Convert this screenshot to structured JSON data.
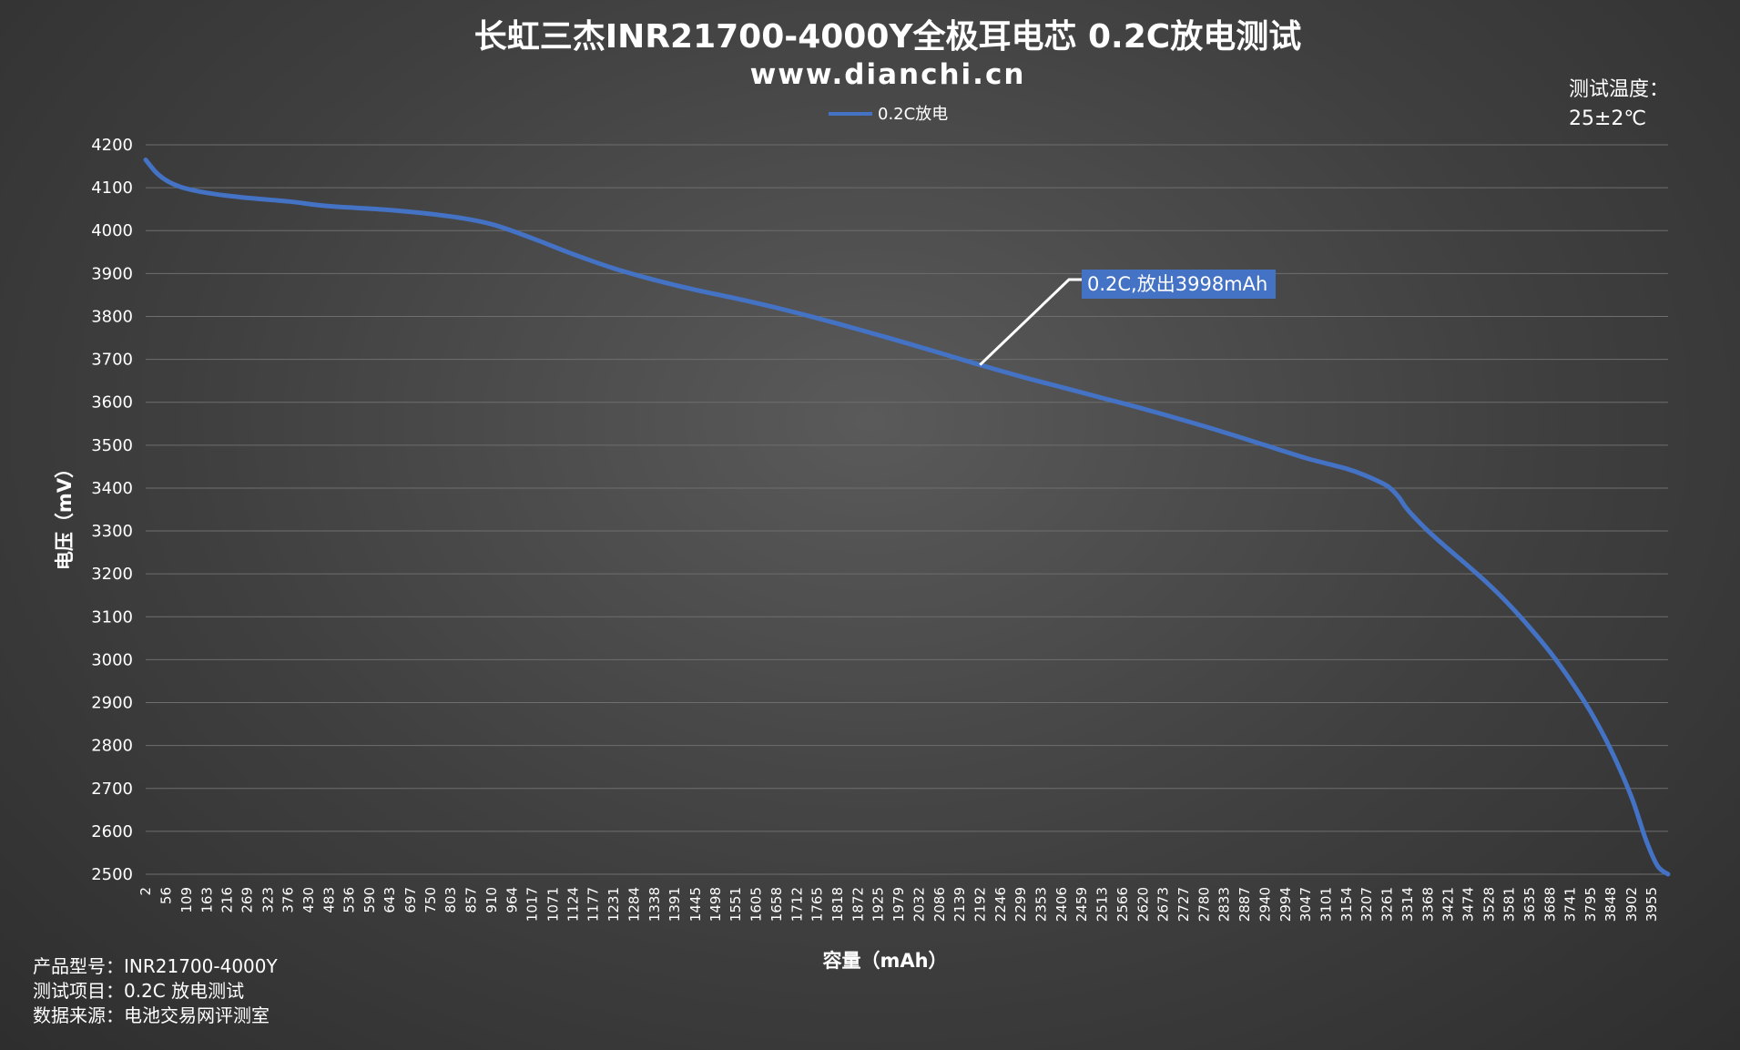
{
  "title": "长虹三杰INR21700-4000Y全极耳电芯 0.2C放电测试",
  "subtitle": "www.dianchi.cn",
  "temperature": {
    "label": "测试温度：",
    "value": "25±2℃"
  },
  "footer": {
    "model": "产品型号：INR21700-4000Y",
    "test_item": "测试项目：0.2C 放电测试",
    "source": "数据来源：电池交易网评测室"
  },
  "chart_data": {
    "type": "line",
    "xlabel": "容量（mAh）",
    "ylabel": "电压（mV）",
    "ylim": [
      2500,
      4200
    ],
    "yticks": [
      4200,
      4100,
      4000,
      3900,
      3800,
      3700,
      3600,
      3500,
      3400,
      3300,
      3200,
      3100,
      3000,
      2900,
      2800,
      2700,
      2600,
      2500
    ],
    "xlim": [
      2,
      3998
    ],
    "xticks": [
      "2",
      "56",
      "109",
      "163",
      "216",
      "269",
      "323",
      "376",
      "430",
      "483",
      "536",
      "590",
      "643",
      "697",
      "750",
      "803",
      "857",
      "910",
      "964",
      "1017",
      "1071",
      "1124",
      "1177",
      "1231",
      "1284",
      "1338",
      "1391",
      "1445",
      "1498",
      "1551",
      "1605",
      "1658",
      "1712",
      "1765",
      "1818",
      "1872",
      "1925",
      "1979",
      "2032",
      "2086",
      "2139",
      "2192",
      "2246",
      "2299",
      "2353",
      "2406",
      "2459",
      "2513",
      "2566",
      "2620",
      "2673",
      "2727",
      "2780",
      "2833",
      "2887",
      "2940",
      "2994",
      "3047",
      "3101",
      "3154",
      "3207",
      "3261",
      "3314",
      "3368",
      "3421",
      "3474",
      "3528",
      "3581",
      "3635",
      "3688",
      "3741",
      "3795",
      "3848",
      "3902",
      "3955"
    ],
    "grid": true,
    "legend": "top-center",
    "series": [
      {
        "name": "0.2C放电",
        "color": "#4472c4",
        "x": [
          2,
          30,
          60,
          100,
          163,
          250,
          376,
          483,
          643,
          803,
          910,
          1017,
          1124,
          1231,
          1338,
          1445,
          1551,
          1658,
          1765,
          1872,
          1979,
          2086,
          2192,
          2299,
          2406,
          2513,
          2620,
          2727,
          2833,
          2940,
          3047,
          3154,
          3207,
          3261,
          3290,
          3314,
          3368,
          3421,
          3474,
          3528,
          3581,
          3635,
          3688,
          3741,
          3795,
          3848,
          3902,
          3940,
          3970,
          3998
        ],
        "y": [
          4165,
          4135,
          4115,
          4100,
          4088,
          4078,
          4068,
          4057,
          4048,
          4033,
          4015,
          3982,
          3945,
          3912,
          3885,
          3862,
          3842,
          3820,
          3796,
          3770,
          3743,
          3715,
          3687,
          3660,
          3635,
          3610,
          3585,
          3558,
          3530,
          3500,
          3470,
          3445,
          3428,
          3405,
          3380,
          3350,
          3300,
          3258,
          3218,
          3175,
          3128,
          3075,
          3018,
          2953,
          2878,
          2790,
          2680,
          2580,
          2520,
          2500
        ]
      }
    ],
    "annotation": {
      "text": "0.2C,放出3998mAh",
      "x": 2192,
      "y": 3687
    }
  }
}
